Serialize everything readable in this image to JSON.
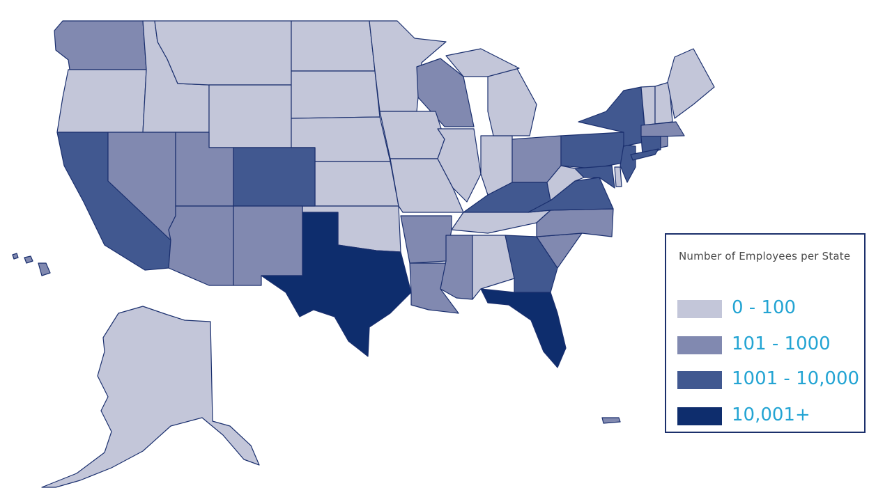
{
  "legend": {
    "title": "Number of Employees per State",
    "items": [
      {
        "label": "0 - 100",
        "color": "#c3c6d9"
      },
      {
        "label": "101 - 1000",
        "color": "#8189b0"
      },
      {
        "label": "1001 - 10,000",
        "color": "#415890"
      },
      {
        "label": "10,001+",
        "color": "#0e2d6d"
      }
    ]
  },
  "states": {
    "0 - 100": [
      "Oregon",
      "Idaho",
      "Montana",
      "Wyoming",
      "North Dakota",
      "South Dakota",
      "Nebraska",
      "Kansas",
      "Oklahoma",
      "Minnesota",
      "Iowa",
      "Missouri",
      "Illinois",
      "Indiana",
      "Michigan",
      "Tennessee",
      "Alabama",
      "West Virginia",
      "Vermont",
      "New Hampshire",
      "Maine",
      "Delaware",
      "Alaska"
    ],
    "101 - 1000": [
      "Washington",
      "Nevada",
      "Utah",
      "Arizona",
      "New Mexico",
      "Wisconsin",
      "Arkansas",
      "Louisiana",
      "Mississippi",
      "Ohio",
      "North Carolina",
      "South Carolina",
      "Massachusetts",
      "Rhode Island",
      "Hawaii",
      "Puerto Rico"
    ],
    "1001 - 10,000": [
      "California",
      "Colorado",
      "Kentucky",
      "Virginia",
      "Georgia",
      "Pennsylvania",
      "New York",
      "New Jersey",
      "Maryland",
      "Connecticut"
    ],
    "10,001+": [
      "Texas",
      "Florida"
    ]
  }
}
